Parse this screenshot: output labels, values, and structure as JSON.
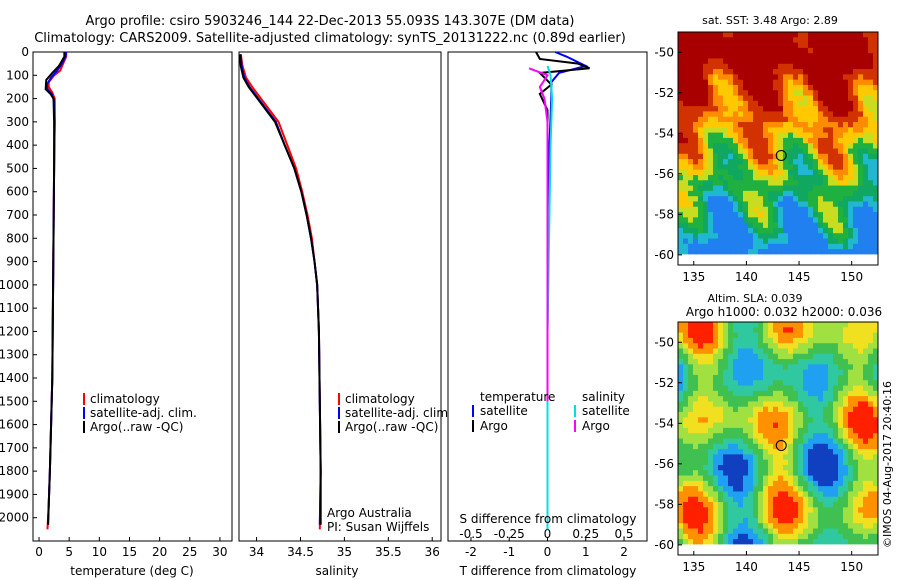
{
  "title_line1": "Argo profile: csiro 5903246_144 22-Dec-2013 55.093S 143.307E (DM data)",
  "title_line2": "Climatology: CARS2009. Satellite-adjusted climatology: synTS_20131222.nc (0.89d earlier)",
  "colors": {
    "clim": "#ff0000",
    "sat": "#0000ff",
    "argo": "#000000",
    "sal_sat": "#00e0e0",
    "sal_argo": "#ff00ff"
  },
  "depth_axis": {
    "min": 0,
    "max": 2100,
    "ticks": [
      0,
      100,
      200,
      300,
      400,
      500,
      600,
      700,
      800,
      900,
      1000,
      1100,
      1200,
      1300,
      1400,
      1500,
      1600,
      1700,
      1800,
      1900,
      2000
    ]
  },
  "chart_data": [
    {
      "type": "line",
      "id": "temperature",
      "xlabel": "temperature (deg C)",
      "xlim": [
        -1,
        32
      ],
      "xticks": [
        0,
        5,
        10,
        15,
        20,
        25,
        30
      ],
      "ylim": [
        0,
        2100
      ],
      "legend": [
        "climatology",
        "satellite-adj. clim.",
        "Argo(..raw -QC)"
      ],
      "series": [
        {
          "name": "climatology",
          "color": "#ff0000",
          "points": [
            [
              4.5,
              0
            ],
            [
              4.5,
              20
            ],
            [
              4,
              50
            ],
            [
              3.5,
              80
            ],
            [
              2.5,
              100
            ],
            [
              1.6,
              130
            ],
            [
              1.6,
              150
            ],
            [
              2.2,
              175
            ],
            [
              2.6,
              200
            ],
            [
              2.6,
              300
            ],
            [
              2.5,
              500
            ],
            [
              2.4,
              800
            ],
            [
              2.3,
              1100
            ],
            [
              2.2,
              1400
            ],
            [
              2.0,
              1600
            ],
            [
              1.8,
              1800
            ],
            [
              1.6,
              1950
            ],
            [
              1.4,
              2050
            ]
          ]
        },
        {
          "name": "satellite-adj. clim.",
          "color": "#0000ff",
          "points": [
            [
              4.5,
              0
            ],
            [
              4.4,
              20
            ],
            [
              3.8,
              50
            ],
            [
              3,
              80
            ],
            [
              2,
              110
            ],
            [
              1.3,
              140
            ],
            [
              1.4,
              160
            ],
            [
              2.1,
              180
            ],
            [
              2.5,
              210
            ],
            [
              2.6,
              300
            ],
            [
              2.5,
              500
            ],
            [
              2.4,
              800
            ],
            [
              2.3,
              1100
            ],
            [
              2.2,
              1400
            ],
            [
              2.0,
              1600
            ],
            [
              1.8,
              1800
            ],
            [
              1.6,
              1950
            ],
            [
              1.5,
              2030
            ]
          ]
        },
        {
          "name": "Argo(..raw -QC)",
          "color": "#000000",
          "points": [
            [
              4.2,
              0
            ],
            [
              4.2,
              20
            ],
            [
              3.3,
              60
            ],
            [
              2.2,
              90
            ],
            [
              1.2,
              120
            ],
            [
              1.1,
              160
            ],
            [
              1.9,
              180
            ],
            [
              2.4,
              200
            ],
            [
              2.5,
              300
            ],
            [
              2.5,
              500
            ],
            [
              2.4,
              800
            ],
            [
              2.3,
              1100
            ],
            [
              2.2,
              1400
            ],
            [
              2.0,
              1600
            ],
            [
              1.8,
              1800
            ],
            [
              1.6,
              1950
            ],
            [
              1.5,
              2030
            ]
          ]
        }
      ]
    },
    {
      "type": "line",
      "id": "salinity",
      "xlabel": "salinity",
      "xlim": [
        33.8,
        36.1
      ],
      "xticks": [
        34,
        34.5,
        35,
        35.5,
        36
      ],
      "xticklabels": [
        "34",
        "34.5",
        "35",
        "35.5",
        "36"
      ],
      "ylim": [
        0,
        2100
      ],
      "legend": [
        "climatology",
        "satellite-adj. clim.",
        "Argo(..raw -QC)"
      ],
      "series": [
        {
          "name": "climatology",
          "color": "#ff0000",
          "points": [
            [
              33.82,
              10
            ],
            [
              33.84,
              60
            ],
            [
              33.88,
              110
            ],
            [
              33.95,
              150
            ],
            [
              34.05,
              200
            ],
            [
              34.15,
              250
            ],
            [
              34.25,
              300
            ],
            [
              34.35,
              400
            ],
            [
              34.45,
              500
            ],
            [
              34.52,
              600
            ],
            [
              34.58,
              700
            ],
            [
              34.63,
              800
            ],
            [
              34.66,
              900
            ],
            [
              34.69,
              1000
            ],
            [
              34.71,
              1200
            ],
            [
              34.72,
              1500
            ],
            [
              34.73,
              1800
            ],
            [
              34.72,
              2050
            ]
          ]
        },
        {
          "name": "satellite-adj. clim.",
          "color": "#0000ff",
          "points": [
            [
              33.82,
              10
            ],
            [
              33.83,
              60
            ],
            [
              33.86,
              110
            ],
            [
              33.92,
              150
            ],
            [
              34.02,
              200
            ],
            [
              34.12,
              250
            ],
            [
              34.22,
              300
            ],
            [
              34.32,
              400
            ],
            [
              34.43,
              500
            ],
            [
              34.51,
              600
            ],
            [
              34.57,
              700
            ],
            [
              34.62,
              800
            ],
            [
              34.66,
              900
            ],
            [
              34.69,
              1000
            ],
            [
              34.71,
              1200
            ],
            [
              34.72,
              1500
            ],
            [
              34.73,
              1800
            ],
            [
              34.72,
              2030
            ]
          ]
        },
        {
          "name": "Argo(..raw -QC)",
          "color": "#000000",
          "points": [
            [
              33.81,
              10
            ],
            [
              33.82,
              60
            ],
            [
              33.85,
              110
            ],
            [
              33.91,
              150
            ],
            [
              34.01,
              200
            ],
            [
              34.11,
              250
            ],
            [
              34.21,
              300
            ],
            [
              34.32,
              400
            ],
            [
              34.43,
              500
            ],
            [
              34.51,
              600
            ],
            [
              34.57,
              700
            ],
            [
              34.62,
              800
            ],
            [
              34.66,
              900
            ],
            [
              34.69,
              1000
            ],
            [
              34.71,
              1200
            ],
            [
              34.72,
              1500
            ],
            [
              34.73,
              1800
            ],
            [
              34.73,
              2030
            ]
          ]
        }
      ],
      "annotation": [
        "Argo Australia",
        "PI: Susan Wijffels"
      ]
    },
    {
      "type": "line",
      "id": "difference",
      "xlabel": "T difference from climatology",
      "xlabel2": "S difference from climatology",
      "xlim": [
        -2.6,
        2.6
      ],
      "xticks": [
        -2,
        -1,
        0,
        1,
        2
      ],
      "xticklabels": [
        "-2",
        "-1",
        "0",
        "1",
        "2"
      ],
      "xticks2": [
        -0.5,
        -0.25,
        0,
        0.25,
        0.5
      ],
      "xticklabels2": [
        "-0.5",
        "-0.25",
        "0",
        "0.25",
        "0.5"
      ],
      "ylim": [
        0,
        2100
      ],
      "legend_t": {
        "title": "temperature",
        "items": [
          "satellite",
          "Argo"
        ]
      },
      "legend_s": {
        "title": "salinity",
        "items": [
          "satellite",
          "Argo"
        ]
      },
      "series": [
        {
          "name": "T satellite",
          "color": "#0000ff",
          "points": [
            [
              0.2,
              0
            ],
            [
              0.5,
              20
            ],
            [
              1,
              60
            ],
            [
              0.3,
              90
            ],
            [
              0.1,
              130
            ],
            [
              0.1,
              200
            ],
            [
              0.05,
              400
            ],
            [
              0.02,
              800
            ],
            [
              0,
              1200
            ],
            [
              0,
              2050
            ]
          ]
        },
        {
          "name": "T Argo",
          "color": "#000000",
          "points": [
            [
              -0.3,
              0
            ],
            [
              -0.2,
              30
            ],
            [
              0.8,
              50
            ],
            [
              1.1,
              70
            ],
            [
              -0.2,
              90
            ],
            [
              0.1,
              140
            ],
            [
              -0.2,
              180
            ],
            [
              0,
              250
            ],
            [
              0,
              500
            ],
            [
              0,
              1000
            ],
            [
              0,
              2050
            ]
          ]
        },
        {
          "name": "S satellite",
          "color": "#00e0e0",
          "points": [
            [
              0,
              60
            ],
            [
              0.02,
              100
            ],
            [
              0.03,
              200
            ],
            [
              0.02,
              400
            ],
            [
              0.01,
              800
            ],
            [
              0,
              1200
            ],
            [
              0,
              2050
            ]
          ]
        },
        {
          "name": "S Argo",
          "color": "#ff00ff",
          "points": [
            [
              -0.12,
              70
            ],
            [
              0,
              100
            ],
            [
              -0.05,
              150
            ],
            [
              -0.02,
              200
            ],
            [
              0,
              300
            ],
            [
              0,
              1500
            ]
          ]
        }
      ]
    },
    {
      "type": "heatmap",
      "id": "sst_map",
      "title": "sat. SST: 3.48 Argo: 2.89",
      "xlim": [
        133.5,
        152.5
      ],
      "ylim": [
        -60.5,
        -49
      ],
      "xticks": [
        135,
        140,
        145,
        150
      ],
      "yticks": [
        -50,
        -52,
        -54,
        -56,
        -58,
        -60
      ],
      "marker": {
        "lon": 143.307,
        "lat": -55.093
      }
    },
    {
      "type": "heatmap",
      "id": "sla_map",
      "title": "Altim. SLA: 0.039",
      "subtitle": "Argo h1000: 0.032 h2000: 0.036",
      "xlim": [
        133.5,
        152.5
      ],
      "ylim": [
        -60.5,
        -49
      ],
      "xticks": [
        135,
        140,
        145,
        150
      ],
      "yticks": [
        -50,
        -52,
        -54,
        -56,
        -58,
        -60
      ],
      "marker": {
        "lon": 143.307,
        "lat": -55.093
      }
    }
  ],
  "footer_stamp": "©IMOS 04-Aug-2017 20:40:16"
}
